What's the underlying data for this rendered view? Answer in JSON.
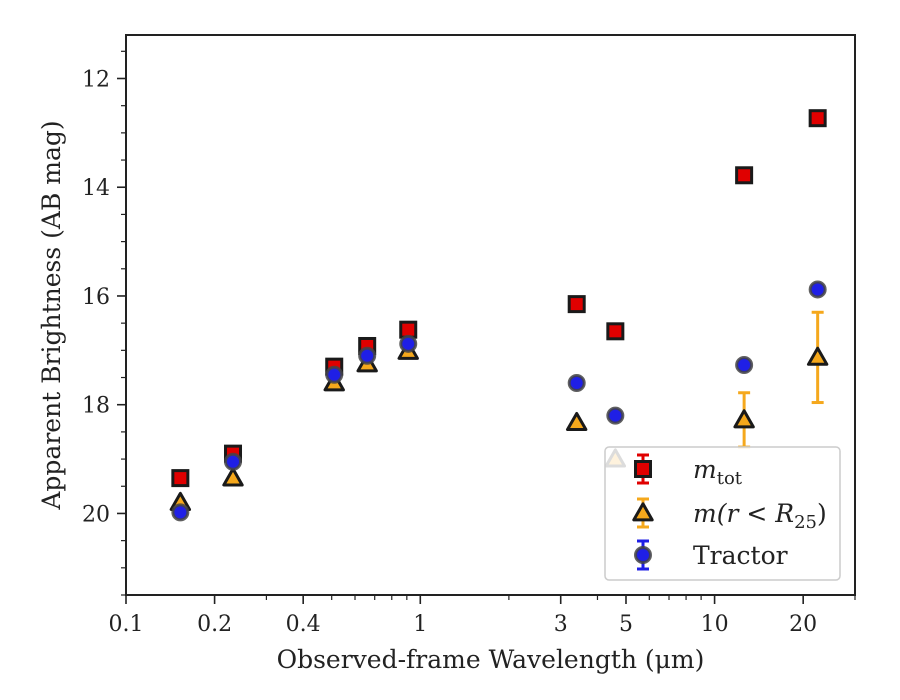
{
  "chart_data": {
    "type": "scatter",
    "xlabel": "Observed-frame Wavelength (μm)",
    "ylabel": "Apparent Brightness (AB mag)",
    "xscale": "log",
    "xlim": [
      0.1,
      30
    ],
    "ylim": [
      21.5,
      11.2
    ],
    "y_inverted": true,
    "x_ticks": [
      0.1,
      0.2,
      0.4,
      1,
      3,
      5,
      10,
      20
    ],
    "x_tick_labels": [
      "0.1",
      "0.2",
      "0.4",
      "1",
      "3",
      "5",
      "10",
      "20"
    ],
    "y_ticks": [
      12,
      14,
      16,
      18,
      20
    ],
    "y_tick_labels": [
      "12",
      "14",
      "16",
      "18",
      "20"
    ],
    "grid": false,
    "legend_position": "lower-right",
    "series": [
      {
        "name": "m_tot",
        "label_parts": {
          "base": "m",
          "sub": "tot"
        },
        "marker": "square",
        "color": "#e00000",
        "edge_color": "#1a1a1a",
        "points": [
          {
            "x": 0.153,
            "y": 19.35,
            "err": 0.05
          },
          {
            "x": 0.231,
            "y": 18.9,
            "err": 0.05
          },
          {
            "x": 0.51,
            "y": 17.3,
            "err": 0.05
          },
          {
            "x": 0.66,
            "y": 16.92,
            "err": 0.05
          },
          {
            "x": 0.91,
            "y": 16.62,
            "err": 0.05
          },
          {
            "x": 3.4,
            "y": 16.15,
            "err": 0.05
          },
          {
            "x": 4.6,
            "y": 16.65,
            "err": 0.05
          },
          {
            "x": 12.6,
            "y": 13.78,
            "err": 0.05
          },
          {
            "x": 22.4,
            "y": 12.73,
            "err": 0.05
          }
        ]
      },
      {
        "name": "m(r < R_25)",
        "label_parts": {
          "pre": "m(r < R",
          "sub": "25",
          "post": ")"
        },
        "marker": "triangle",
        "color": "#f5a81c",
        "edge_color": "#1a1a1a",
        "points": [
          {
            "x": 0.153,
            "y": 19.8,
            "err": 0.05
          },
          {
            "x": 0.231,
            "y": 19.35,
            "err": 0.05
          },
          {
            "x": 0.51,
            "y": 17.6,
            "err": 0.05
          },
          {
            "x": 0.66,
            "y": 17.25,
            "err": 0.05
          },
          {
            "x": 0.91,
            "y": 17.02,
            "err": 0.05
          },
          {
            "x": 3.4,
            "y": 18.33,
            "err": 0.05
          },
          {
            "x": 4.6,
            "y": 19.0,
            "err": 0.05
          },
          {
            "x": 12.6,
            "y": 18.28,
            "err": 0.5
          },
          {
            "x": 22.4,
            "y": 17.13,
            "err": 0.83
          }
        ]
      },
      {
        "name": "Tractor",
        "marker": "circle",
        "color": "#1f1fe6",
        "edge_color": "#444444",
        "points": [
          {
            "x": 0.153,
            "y": 19.98,
            "err": 0.05
          },
          {
            "x": 0.231,
            "y": 19.05,
            "err": 0.05
          },
          {
            "x": 0.51,
            "y": 17.45,
            "err": 0.05
          },
          {
            "x": 0.66,
            "y": 17.1,
            "err": 0.05
          },
          {
            "x": 0.91,
            "y": 16.88,
            "err": 0.05
          },
          {
            "x": 3.4,
            "y": 17.6,
            "err": 0.05
          },
          {
            "x": 4.6,
            "y": 18.2,
            "err": 0.05
          },
          {
            "x": 12.6,
            "y": 17.27,
            "err": 0.07
          },
          {
            "x": 22.4,
            "y": 15.88,
            "err": 0.07
          }
        ]
      }
    ]
  }
}
